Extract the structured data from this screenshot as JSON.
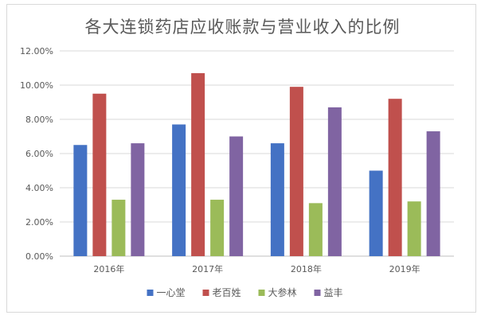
{
  "chart_data": {
    "type": "bar",
    "title": "各大连锁药店应收账款与营业收入的比例",
    "categories": [
      "2016年",
      "2017年",
      "2018年",
      "2019年"
    ],
    "series": [
      {
        "name": "一心堂",
        "color": "#4472c4",
        "values": [
          6.5,
          7.7,
          6.6,
          5.0
        ]
      },
      {
        "name": "老百姓",
        "color": "#c0504d",
        "values": [
          9.5,
          10.7,
          9.9,
          9.2
        ]
      },
      {
        "name": "大参林",
        "color": "#9bbb59",
        "values": [
          3.3,
          3.3,
          3.1,
          3.2
        ]
      },
      {
        "name": "益丰",
        "color": "#8064a2",
        "values": [
          6.6,
          7.0,
          8.7,
          7.3
        ]
      }
    ],
    "y_ticks": [
      "0.00%",
      "2.00%",
      "4.00%",
      "6.00%",
      "8.00%",
      "10.00%",
      "12.00%"
    ],
    "ylim": [
      0,
      12
    ],
    "y_step": 2,
    "grid": true,
    "legend_position": "bottom"
  }
}
